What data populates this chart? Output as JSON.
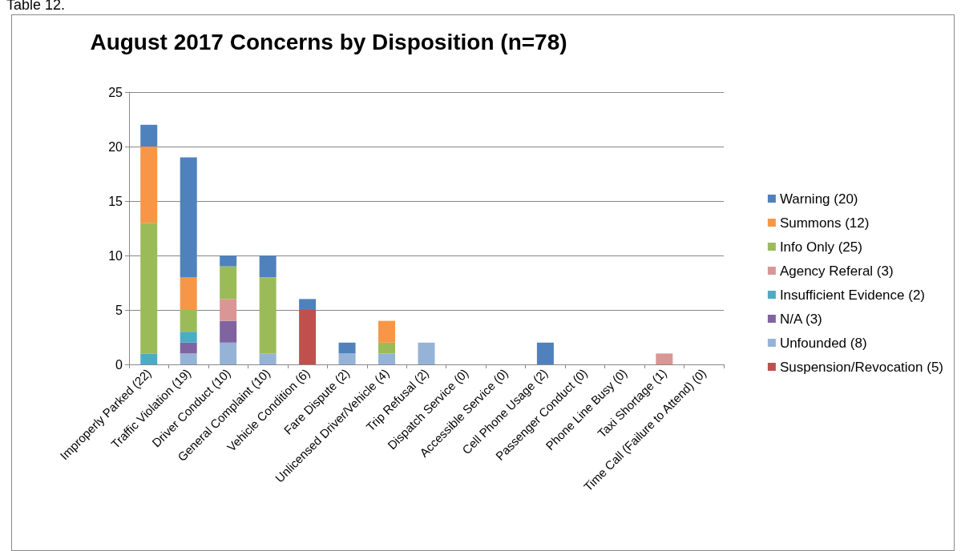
{
  "chart_data": {
    "type": "bar",
    "stacked": true,
    "title": "August 2017 Concerns by Disposition (n=78)",
    "annotations": [
      "Table 12."
    ],
    "categories": [
      "Improperly Parked (22)",
      "Traffic Violation (19)",
      "Driver Conduct (10)",
      "General Complaint (10)",
      "Vehicle Condition (6)",
      "Fare Dispute (2)",
      "Unlicensed Driver/Vehicle (4)",
      "Trip Refusal (2)",
      "Dispatch Service (0)",
      "Accessible Service (0)",
      "Cell Phone Usage (2)",
      "Passenger Conduct (0)",
      "Phone Line Busy (0)",
      "Taxi Shortage (1)",
      "Time Call (Failure to Attend) (0)"
    ],
    "series": [
      {
        "name": "Suspension/Revocation (5)",
        "color": "#c0504d",
        "values": [
          null,
          null,
          null,
          null,
          5,
          null,
          null,
          null,
          null,
          null,
          null,
          null,
          null,
          null,
          null
        ]
      },
      {
        "name": "Unfounded (8)",
        "color": "#95b3d7",
        "values": [
          null,
          1,
          2,
          1,
          null,
          1,
          1,
          2,
          null,
          null,
          null,
          null,
          null,
          null,
          null
        ]
      },
      {
        "name": "N/A (3)",
        "color": "#8064a2",
        "values": [
          null,
          1,
          2,
          null,
          null,
          null,
          null,
          null,
          null,
          null,
          null,
          null,
          null,
          null,
          null
        ]
      },
      {
        "name": "Insufficient Evidence (2)",
        "color": "#4bacc6",
        "values": [
          1,
          1,
          null,
          null,
          null,
          null,
          null,
          null,
          null,
          null,
          null,
          null,
          null,
          null,
          null
        ]
      },
      {
        "name": "Agency Referal (3)",
        "color": "#d99694",
        "values": [
          null,
          null,
          2,
          null,
          null,
          null,
          null,
          null,
          null,
          null,
          null,
          null,
          null,
          1,
          null
        ]
      },
      {
        "name": "Info Only (25)",
        "color": "#9bbb59",
        "values": [
          12,
          2,
          3,
          7,
          null,
          null,
          1,
          null,
          null,
          null,
          null,
          null,
          null,
          null,
          null
        ]
      },
      {
        "name": "Summons (12)",
        "color": "#f79646",
        "values": [
          7,
          3,
          null,
          null,
          null,
          null,
          2,
          null,
          null,
          null,
          null,
          null,
          null,
          null,
          null
        ]
      },
      {
        "name": "Warning (20)",
        "color": "#4f81bd",
        "values": [
          2,
          11,
          1,
          2,
          1,
          1,
          null,
          null,
          null,
          null,
          2,
          null,
          null,
          null,
          null
        ]
      }
    ],
    "ylim": [
      0,
      25
    ],
    "yticks": [
      0,
      5,
      10,
      15,
      20,
      25
    ],
    "grid": "y",
    "legend": "right"
  }
}
